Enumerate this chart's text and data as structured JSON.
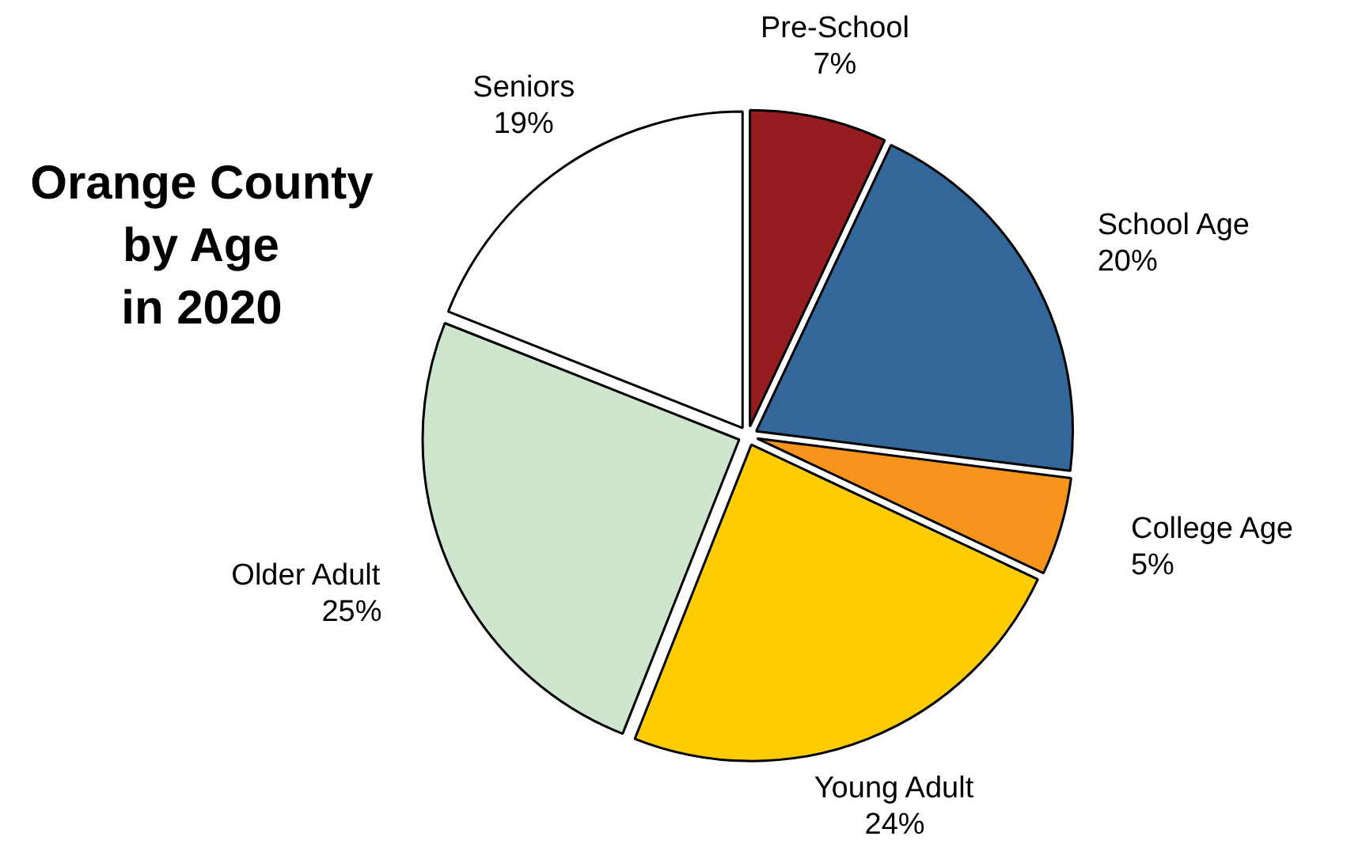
{
  "chart_data": {
    "type": "pie",
    "title": "Orange County\nby Age\nin 2020",
    "categories": [
      "Pre-School",
      "School Age",
      "College Age",
      "Young Adult",
      "Older Adult",
      "Seniors"
    ],
    "values": [
      7,
      20,
      5,
      24,
      25,
      19
    ],
    "colors": [
      "#951c1f",
      "#336699",
      "#f7941d",
      "#ffcc00",
      "#cde6cd",
      "#ffffff"
    ],
    "value_labels": [
      "7%",
      "20%",
      "5%",
      "24%",
      "25%",
      "19%"
    ]
  }
}
